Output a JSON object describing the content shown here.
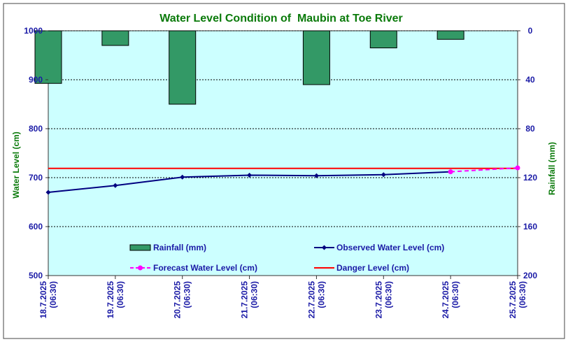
{
  "chart_data": {
    "type": "bar+line",
    "title": "Water Level Condition of  Maubin at Toe River",
    "x": [
      "18.7.2025 (06:30)",
      "19.7.2025 (06:30)",
      "20.7.2025 (06:30)",
      "21.7.2025 (06:30)",
      "22.7.2025 (06:30)",
      "23.7.2025 (06:30)",
      "24.7.2025 (06:30)",
      "25.7.2025 (06:30)"
    ],
    "x_date": [
      "18.7.2025",
      "19.7.2025",
      "20.7.2025",
      "21.7.2025",
      "22.7.2025",
      "23.7.2025",
      "24.7.2025",
      "25.7.2025"
    ],
    "x_time": [
      "(06:30)",
      "(06:30)",
      "(06:30)",
      "(06:30)",
      "(06:30)",
      "(06:30)",
      "(06:30)",
      "(06:30)"
    ],
    "ylabel": "Water Level (cm)",
    "ylim": [
      500,
      1000
    ],
    "yticks": [
      500,
      600,
      700,
      800,
      900,
      1000
    ],
    "y2label": "Rainfall (mm)",
    "y2lim": [
      200,
      0
    ],
    "y2ticks": [
      0,
      40,
      80,
      120,
      160,
      200
    ],
    "grid": "horizontal dotted",
    "series": [
      {
        "name": "Rainfall (mm)",
        "kind": "bar",
        "axis": "right-inverted",
        "color": "#339966",
        "values": [
          43,
          12,
          60,
          null,
          44,
          14,
          7,
          null
        ]
      },
      {
        "name": "Observed Water Level (cm)",
        "kind": "line",
        "color": "#000080",
        "values": [
          670,
          684,
          701,
          705,
          704,
          706,
          712,
          null
        ]
      },
      {
        "name": "Forecast Water Level (cm)",
        "kind": "dashed-line",
        "color": "#ff00ff",
        "values": [
          null,
          null,
          null,
          null,
          null,
          null,
          712,
          720
        ]
      },
      {
        "name": "Danger Level (cm)",
        "kind": "hline",
        "color": "#ff0000",
        "value": 719
      }
    ],
    "legend": {
      "placement": "bottom inside plot"
    },
    "colors": {
      "plot_bg": "#ccffff",
      "title": "#0a7a0a",
      "ticks": "#1a1aa6"
    }
  }
}
